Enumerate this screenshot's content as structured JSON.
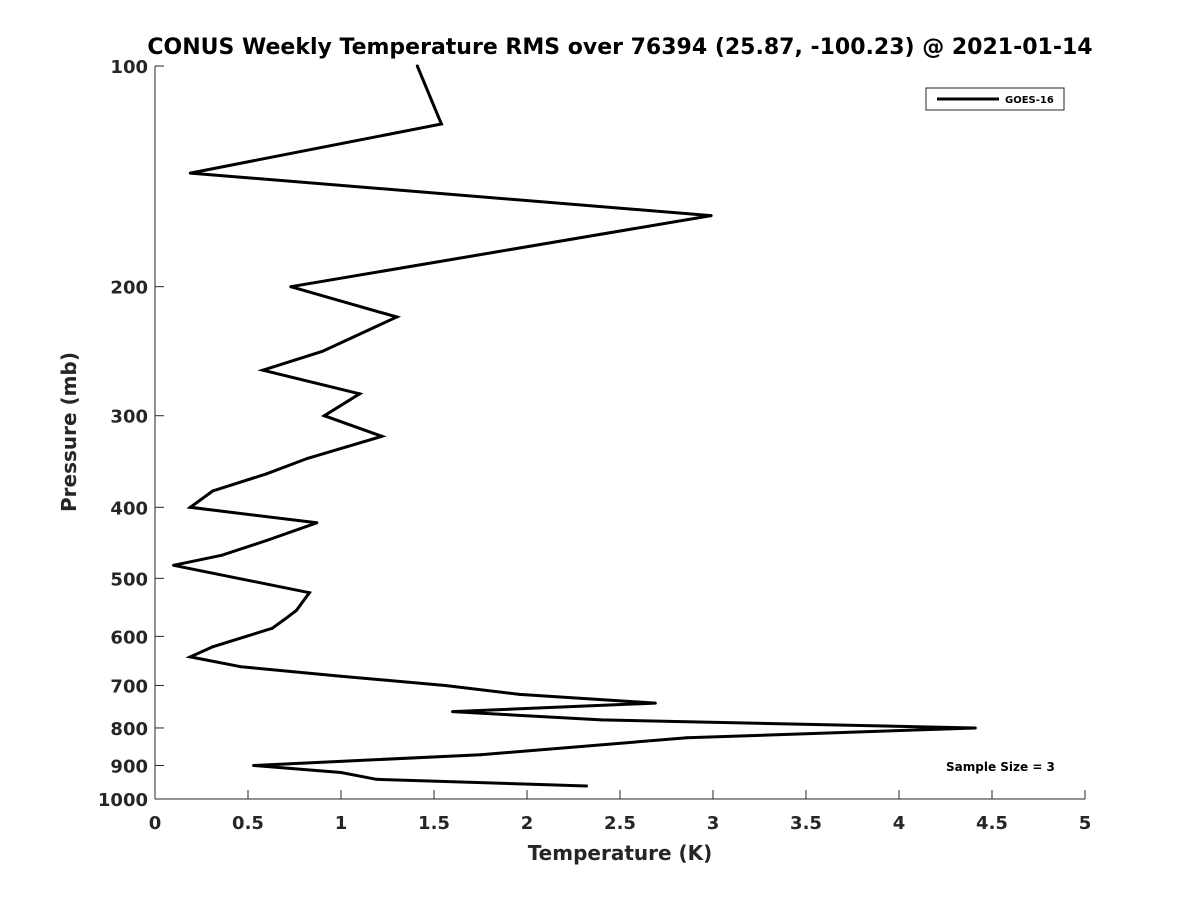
{
  "chart_data": {
    "type": "line",
    "title": "CONUS Weekly Temperature RMS over 76394 (25.87, -100.23) @ 2021-01-14",
    "xlabel": "Temperature (K)",
    "ylabel": "Pressure (mb)",
    "xlim": [
      0,
      5
    ],
    "ylim": [
      100,
      1000
    ],
    "yscale": "log",
    "yreversed": true,
    "grid": false,
    "legend_position": "top-right",
    "x_ticks": [
      "0",
      "0.5",
      "1",
      "1.5",
      "2",
      "2.5",
      "3",
      "3.5",
      "4",
      "4.5",
      "5"
    ],
    "x_tick_values": [
      0,
      0.5,
      1,
      1.5,
      2,
      2.5,
      3,
      3.5,
      4,
      4.5,
      5
    ],
    "y_ticks": [
      "100",
      "200",
      "300",
      "400",
      "500",
      "600",
      "700",
      "800",
      "900",
      "1000"
    ],
    "y_tick_values": [
      100,
      200,
      300,
      400,
      500,
      600,
      700,
      800,
      900,
      1000
    ],
    "line_color": "#000000",
    "series": [
      {
        "name": "GOES-16",
        "points": [
          {
            "x": 1.41,
            "y": 100
          },
          {
            "x": 1.54,
            "y": 120
          },
          {
            "x": 0.19,
            "y": 140
          },
          {
            "x": 2.99,
            "y": 160
          },
          {
            "x": 0.73,
            "y": 200
          },
          {
            "x": 1.3,
            "y": 220
          },
          {
            "x": 0.9,
            "y": 245
          },
          {
            "x": 0.58,
            "y": 260
          },
          {
            "x": 1.1,
            "y": 280
          },
          {
            "x": 0.91,
            "y": 300
          },
          {
            "x": 1.22,
            "y": 320
          },
          {
            "x": 0.82,
            "y": 343
          },
          {
            "x": 0.6,
            "y": 360
          },
          {
            "x": 0.31,
            "y": 380
          },
          {
            "x": 0.19,
            "y": 400
          },
          {
            "x": 0.87,
            "y": 420
          },
          {
            "x": 0.6,
            "y": 444
          },
          {
            "x": 0.36,
            "y": 465
          },
          {
            "x": 0.1,
            "y": 480
          },
          {
            "x": 0.83,
            "y": 523
          },
          {
            "x": 0.76,
            "y": 553
          },
          {
            "x": 0.7,
            "y": 568
          },
          {
            "x": 0.63,
            "y": 585
          },
          {
            "x": 0.49,
            "y": 600
          },
          {
            "x": 0.31,
            "y": 620
          },
          {
            "x": 0.19,
            "y": 640
          },
          {
            "x": 0.46,
            "y": 660
          },
          {
            "x": 1.0,
            "y": 680
          },
          {
            "x": 1.56,
            "y": 700
          },
          {
            "x": 1.96,
            "y": 720
          },
          {
            "x": 2.69,
            "y": 740
          },
          {
            "x": 1.6,
            "y": 760
          },
          {
            "x": 2.4,
            "y": 780
          },
          {
            "x": 4.41,
            "y": 800
          },
          {
            "x": 2.86,
            "y": 825
          },
          {
            "x": 1.75,
            "y": 870
          },
          {
            "x": 0.53,
            "y": 900
          },
          {
            "x": 1.0,
            "y": 920
          },
          {
            "x": 1.19,
            "y": 940
          },
          {
            "x": 2.32,
            "y": 960
          }
        ]
      }
    ],
    "annotation": "Sample Size = 3"
  }
}
